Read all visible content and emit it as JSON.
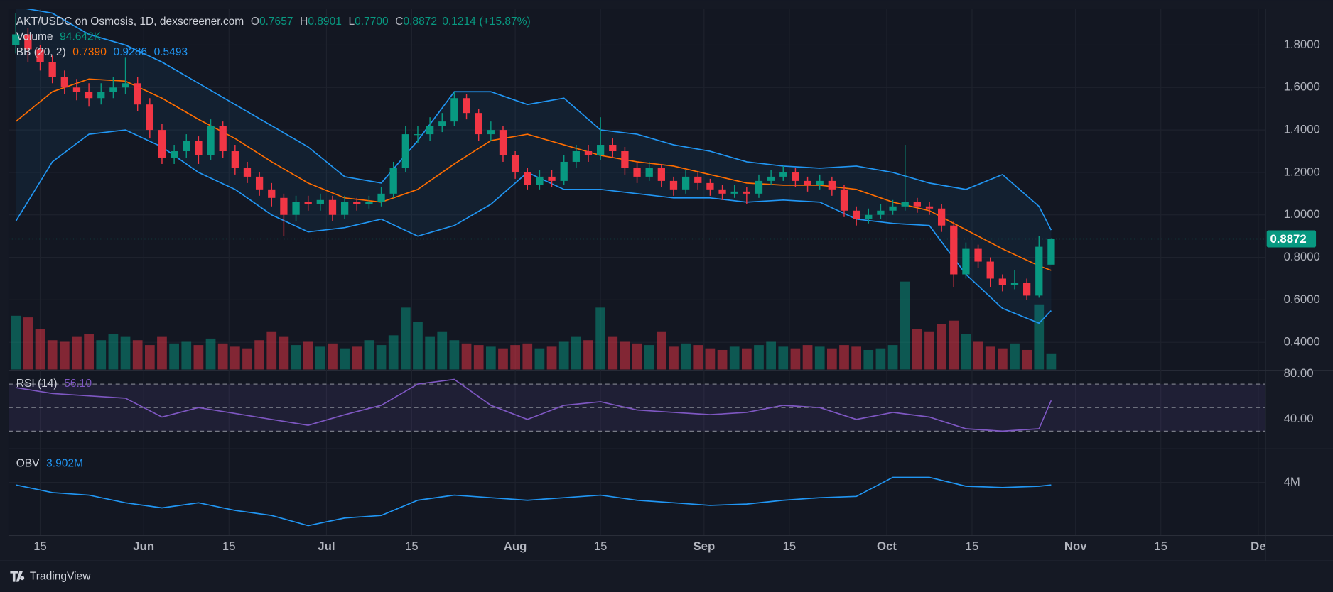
{
  "chart_data": {
    "type": "candlestick",
    "title": "AKT/USDC on Osmosis, 1D, dexscreener.com",
    "ohlc_keys": [
      "O",
      "H",
      "L",
      "C"
    ],
    "last": {
      "open": 0.7657,
      "high": 0.8901,
      "low": {
        "value": 0.77,
        "label": "0.7700"
      },
      "close": 0.8872,
      "change": 0.1214,
      "change_pct": {
        "value": 15.87,
        "label": "(+15.87%)"
      }
    },
    "x": [
      10,
      12,
      14,
      16,
      18,
      20,
      22,
      24,
      26,
      28,
      30,
      32,
      34,
      36,
      38,
      40,
      42,
      44,
      46,
      48,
      50,
      52,
      54,
      56,
      58,
      60,
      62,
      64,
      66,
      68,
      70,
      72,
      74,
      76,
      78,
      80,
      82,
      84,
      86,
      88,
      90,
      92,
      94,
      96,
      98,
      100,
      102,
      104,
      106,
      108,
      110,
      112,
      114,
      116,
      118,
      120,
      122,
      124,
      126,
      128,
      130,
      132,
      134,
      136,
      138,
      140,
      142,
      144,
      146,
      148,
      150,
      152,
      154,
      156,
      158,
      160,
      162,
      164,
      166,
      168,
      170,
      172,
      174,
      176,
      178,
      180
    ],
    "open": [
      1.8,
      1.85,
      1.78,
      1.72,
      1.65,
      1.6,
      1.58,
      1.55,
      1.58,
      1.6,
      1.62,
      1.52,
      1.4,
      1.27,
      1.3,
      1.35,
      1.28,
      1.42,
      1.3,
      1.22,
      1.18,
      1.12,
      1.08,
      1.0,
      1.06,
      1.05,
      1.07,
      1.0,
      1.06,
      1.05,
      1.06,
      1.1,
      1.22,
      1.38,
      1.38,
      1.42,
      1.44,
      1.55,
      1.48,
      1.38,
      1.4,
      1.28,
      1.2,
      1.14,
      1.18,
      1.16,
      1.25,
      1.3,
      1.28,
      1.33,
      1.3,
      1.22,
      1.18,
      1.22,
      1.16,
      1.12,
      1.18,
      1.15,
      1.12,
      1.1,
      1.11,
      1.1,
      1.16,
      1.18,
      1.2,
      1.16,
      1.14,
      1.16,
      1.12,
      1.02,
      0.98,
      1.0,
      1.02,
      1.04,
      1.06,
      1.04,
      1.03,
      0.95,
      0.72,
      0.84,
      0.78,
      0.7,
      0.67,
      0.68,
      0.62,
      0.7657
    ],
    "high": [
      1.95,
      1.88,
      1.8,
      1.75,
      1.68,
      1.64,
      1.62,
      1.62,
      1.65,
      1.74,
      1.65,
      1.55,
      1.43,
      1.33,
      1.38,
      1.37,
      1.45,
      1.44,
      1.33,
      1.25,
      1.2,
      1.15,
      1.1,
      1.09,
      1.09,
      1.1,
      1.09,
      1.09,
      1.08,
      1.09,
      1.13,
      1.25,
      1.42,
      1.42,
      1.46,
      1.48,
      1.58,
      1.57,
      1.5,
      1.44,
      1.42,
      1.3,
      1.22,
      1.21,
      1.21,
      1.28,
      1.33,
      1.33,
      1.46,
      1.36,
      1.32,
      1.25,
      1.25,
      1.24,
      1.18,
      1.21,
      1.2,
      1.17,
      1.14,
      1.14,
      1.13,
      1.19,
      1.21,
      1.23,
      1.22,
      1.18,
      1.19,
      1.18,
      1.14,
      1.04,
      1.03,
      1.05,
      1.07,
      1.33,
      1.08,
      1.06,
      1.05,
      0.97,
      0.87,
      0.86,
      0.8,
      0.72,
      0.74,
      0.7,
      0.9,
      0.8901
    ],
    "low": [
      1.76,
      1.72,
      1.68,
      1.62,
      1.57,
      1.54,
      1.51,
      1.52,
      1.55,
      1.57,
      1.49,
      1.36,
      1.24,
      1.24,
      1.27,
      1.24,
      1.26,
      1.27,
      1.19,
      1.15,
      1.09,
      1.04,
      0.9,
      0.97,
      1.02,
      1.02,
      0.97,
      0.98,
      1.02,
      1.03,
      1.04,
      1.08,
      1.2,
      1.34,
      1.35,
      1.39,
      1.42,
      1.45,
      1.35,
      1.35,
      1.25,
      1.17,
      1.12,
      1.12,
      1.13,
      1.14,
      1.22,
      1.25,
      1.26,
      1.27,
      1.19,
      1.15,
      1.16,
      1.13,
      1.09,
      1.1,
      1.12,
      1.09,
      1.07,
      1.08,
      1.05,
      1.08,
      1.14,
      1.16,
      1.13,
      1.11,
      1.12,
      1.09,
      0.99,
      0.95,
      0.96,
      0.98,
      1.0,
      1.02,
      1.01,
      1.0,
      0.92,
      0.66,
      0.7,
      0.75,
      0.66,
      0.64,
      0.65,
      0.6,
      0.61,
      0.77
    ],
    "close": [
      1.85,
      1.78,
      1.72,
      1.65,
      1.6,
      1.58,
      1.55,
      1.58,
      1.6,
      1.62,
      1.52,
      1.4,
      1.27,
      1.3,
      1.35,
      1.28,
      1.42,
      1.3,
      1.22,
      1.18,
      1.12,
      1.08,
      1.0,
      1.06,
      1.05,
      1.07,
      1.0,
      1.06,
      1.05,
      1.06,
      1.1,
      1.22,
      1.38,
      1.38,
      1.42,
      1.44,
      1.55,
      1.48,
      1.38,
      1.4,
      1.28,
      1.2,
      1.14,
      1.18,
      1.16,
      1.25,
      1.3,
      1.28,
      1.33,
      1.3,
      1.22,
      1.18,
      1.22,
      1.16,
      1.12,
      1.18,
      1.15,
      1.12,
      1.1,
      1.11,
      1.1,
      1.16,
      1.18,
      1.2,
      1.16,
      1.14,
      1.16,
      1.12,
      1.02,
      0.98,
      1.0,
      1.02,
      1.04,
      1.06,
      1.04,
      1.03,
      0.95,
      0.72,
      0.84,
      0.78,
      0.7,
      0.67,
      0.68,
      0.62,
      0.85,
      0.8872
    ],
    "volume": [
      330,
      320,
      250,
      180,
      170,
      200,
      220,
      180,
      220,
      200,
      180,
      150,
      200,
      160,
      170,
      150,
      190,
      160,
      140,
      130,
      180,
      230,
      200,
      150,
      170,
      140,
      160,
      130,
      140,
      180,
      150,
      210,
      380,
      290,
      200,
      230,
      180,
      160,
      150,
      140,
      130,
      150,
      160,
      130,
      140,
      170,
      200,
      180,
      380,
      200,
      170,
      160,
      150,
      230,
      140,
      160,
      150,
      130,
      120,
      140,
      130,
      150,
      170,
      140,
      130,
      150,
      140,
      130,
      150,
      140,
      120,
      130,
      150,
      540,
      250,
      230,
      280,
      300,
      220,
      170,
      140,
      130,
      160,
      120,
      400,
      94.642
    ],
    "volume_name": "Volume",
    "volume_last": {
      "value": 94.642,
      "label": "94.642K"
    },
    "volume_ylim": [
      0,
      600
    ],
    "up_color": "#089981",
    "down_color": "#f23645",
    "ind_x": [
      10,
      16,
      22,
      28,
      34,
      40,
      46,
      52,
      58,
      64,
      70,
      76,
      82,
      88,
      94,
      100,
      106,
      112,
      118,
      124,
      130,
      136,
      142,
      148,
      154,
      160,
      166,
      172,
      178,
      180
    ],
    "bb": {
      "name": "BB (20, 2)",
      "series": [
        {
          "color": "#ff6d00",
          "values": [
            1.44,
            1.58,
            1.64,
            1.63,
            1.55,
            1.45,
            1.36,
            1.25,
            1.15,
            1.08,
            1.06,
            1.12,
            1.24,
            1.35,
            1.38,
            1.33,
            1.28,
            1.25,
            1.23,
            1.19,
            1.15,
            1.14,
            1.14,
            1.12,
            1.06,
            1.02,
            0.93,
            0.84,
            0.76,
            0.739
          ],
          "last": {
            "value": 0.739,
            "label": "0.7390"
          }
        },
        {
          "color": "#2196f3",
          "values": [
            1.98,
            1.95,
            1.85,
            1.8,
            1.72,
            1.62,
            1.52,
            1.42,
            1.32,
            1.18,
            1.15,
            1.35,
            1.58,
            1.58,
            1.52,
            1.55,
            1.4,
            1.38,
            1.33,
            1.3,
            1.25,
            1.23,
            1.22,
            1.23,
            1.2,
            1.15,
            1.12,
            1.19,
            1.04,
            0.9286
          ],
          "last": 0.9286
        },
        {
          "color": "#2196f3",
          "values": [
            0.97,
            1.25,
            1.38,
            1.4,
            1.32,
            1.2,
            1.12,
            1.0,
            0.92,
            0.94,
            0.98,
            0.9,
            0.95,
            1.05,
            1.2,
            1.12,
            1.12,
            1.1,
            1.08,
            1.08,
            1.06,
            1.07,
            1.06,
            0.98,
            0.96,
            0.95,
            0.72,
            0.56,
            0.49,
            0.5493
          ],
          "last": 0.5493
        }
      ]
    },
    "rsi": {
      "name": "RSI (14)",
      "color": "#7e57c2",
      "values": [
        67,
        62,
        60,
        58,
        42,
        50,
        45,
        40,
        35,
        44,
        52,
        70,
        74,
        52,
        40,
        52,
        55,
        48,
        46,
        44,
        46,
        52,
        50,
        40,
        46,
        42,
        32,
        30,
        32,
        56.1
      ],
      "last": {
        "value": 56.1,
        "label": "56.10"
      },
      "ylim": [
        16,
        81
      ],
      "yticks": [
        {
          "value": 40,
          "label": "40.00"
        },
        {
          "value": 80,
          "label": "80.00"
        }
      ],
      "levels": [
        30,
        50,
        70
      ]
    },
    "obv": {
      "name": "OBV",
      "color": "#2196f3",
      "values": [
        3.9,
        3.6,
        3.5,
        3.2,
        3.0,
        3.2,
        2.9,
        2.7,
        2.3,
        2.6,
        2.7,
        3.3,
        3.5,
        3.4,
        3.3,
        3.4,
        3.5,
        3.3,
        3.2,
        3.1,
        3.15,
        3.3,
        3.4,
        3.45,
        4.2,
        4.2,
        3.85,
        3.8,
        3.85,
        3.902
      ],
      "last": {
        "value": 3.902,
        "label": "3.902M"
      },
      "ylim": [
        1.93,
        5.27
      ],
      "yticks": [
        {
          "value": 4,
          "label": "4M"
        }
      ]
    },
    "xlim": [
      8.8,
      215.1
    ],
    "xticks": [
      {
        "value": 14,
        "label": "15"
      },
      {
        "value": 31,
        "label": "Jun"
      },
      {
        "value": 45,
        "label": "15"
      },
      {
        "value": 61,
        "label": "Jul"
      },
      {
        "value": 75,
        "label": "15"
      },
      {
        "value": 92,
        "label": "Aug"
      },
      {
        "value": 106,
        "label": "15"
      },
      {
        "value": 123,
        "label": "Sep"
      },
      {
        "value": 137,
        "label": "15"
      },
      {
        "value": 153,
        "label": "Oct"
      },
      {
        "value": 167,
        "label": "15"
      },
      {
        "value": 184,
        "label": "Nov"
      },
      {
        "value": 198,
        "label": "15"
      },
      {
        "value": 214,
        "label": "De"
      }
    ],
    "ylim": [
      0.272,
      1.972
    ],
    "yticks": [
      {
        "value": 0.4,
        "label": "0.4000"
      },
      {
        "value": 0.6,
        "label": "0.6000"
      },
      {
        "value": 0.8,
        "label": "0.8000"
      },
      {
        "value": 1.0,
        "label": "1.0000"
      },
      {
        "value": 1.2,
        "label": "1.2000"
      },
      {
        "value": 1.4,
        "label": "1.4000"
      },
      {
        "value": 1.6,
        "label": "1.6000"
      },
      {
        "value": 1.8,
        "label": "1.8000"
      }
    ],
    "grid": true,
    "footer": "TradingView"
  }
}
